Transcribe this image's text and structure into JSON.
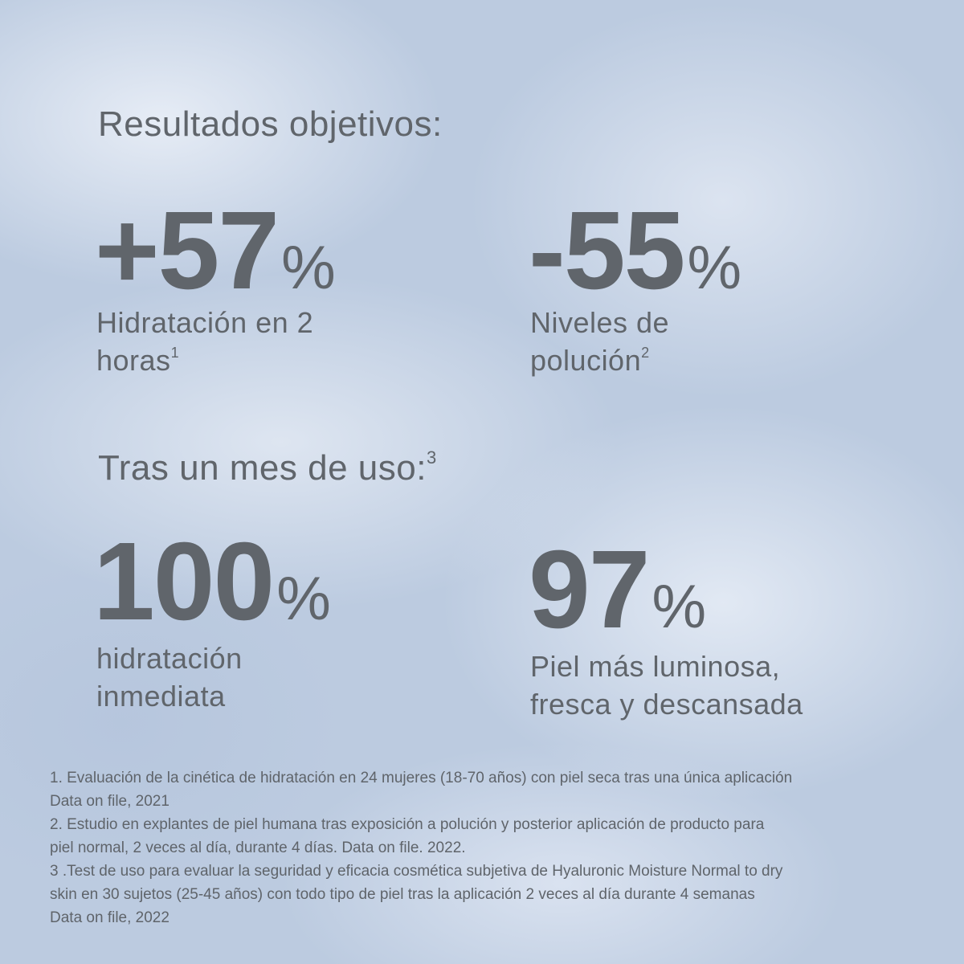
{
  "section1": {
    "heading": "Resultados objetivos:",
    "stats": [
      {
        "value": "+57",
        "unit": "%",
        "label_line1": "Hidratación en 2",
        "label_line2": "horas",
        "sup": "1"
      },
      {
        "value": "-55",
        "unit": "%",
        "label_line1": "Niveles de",
        "label_line2": "polución",
        "sup": "2"
      }
    ]
  },
  "section2": {
    "heading": "Tras un mes de uso:",
    "heading_sup": "3",
    "stats": [
      {
        "value": "100",
        "unit": "%",
        "label_line1": "hidratación",
        "label_line2": "inmediata"
      },
      {
        "value": "97",
        "unit": "%",
        "label_line1": "Piel más luminosa,",
        "label_line2": "fresca y descansada"
      }
    ]
  },
  "footnotes": [
    "1. Evaluación de la cinética de hidratación en 24 mujeres (18-70 años) con piel seca tras una única aplicación",
    "Data on file, 2021",
    "2. Estudio en explantes de piel humana tras exposición a polución y posterior aplicación de producto para",
    "piel normal, 2 veces al día, durante 4 días. Data on file. 2022.",
    "3 .Test de uso para evaluar la seguridad y eficacia cosmética subjetiva de Hyaluronic Moisture Normal to dry",
    "skin en 30 sujetos (25-45 años) con todo tipo de piel tras la aplicación 2 veces al día durante 4 semanas",
    "Data on file, 2022"
  ],
  "colors": {
    "text": "#60656b",
    "background": "#bccbe0"
  }
}
